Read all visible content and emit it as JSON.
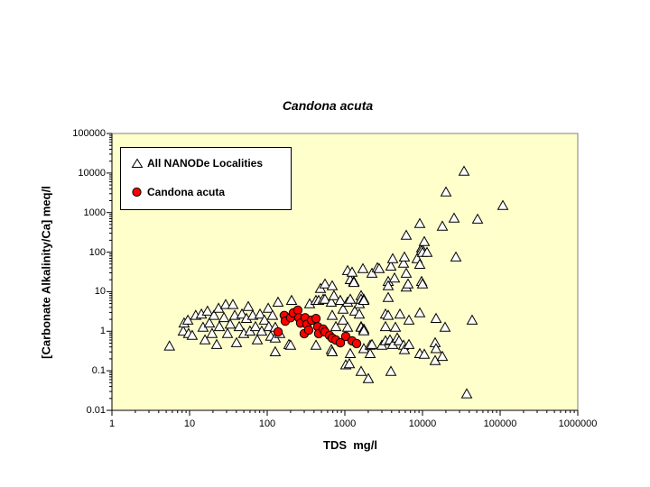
{
  "page": {
    "background": "#FFFFFF"
  },
  "chart_data": {
    "type": "scatter",
    "title": "Candona acuta",
    "xlabel": "TDS  mg/l",
    "ylabel": "[Carbonate Alkalinity/Ca] meq/l",
    "x_scale": "log",
    "y_scale": "log",
    "xlim": [
      1,
      1000000
    ],
    "ylim": [
      0.01,
      100000
    ],
    "x_ticks": [
      1,
      10,
      100,
      1000,
      10000,
      100000,
      1000000
    ],
    "y_ticks": [
      100000,
      10000,
      1000,
      100,
      10,
      1,
      0.1,
      0.01
    ],
    "grid": false,
    "plot_bg": "#FFFFCC",
    "frame_color": "#808080",
    "axis_color": "#000000",
    "legend": {
      "position": "top-left-inside",
      "border": "#000000",
      "bg": "#FFFFFF"
    },
    "series": [
      {
        "name": "All NANODe Localities",
        "marker": "triangle-open",
        "fill": "#FFFFFF",
        "outline": "#000000",
        "points": [
          [
            5.5,
            0.42
          ],
          [
            8.3,
            1.0
          ],
          [
            8.5,
            1.6
          ],
          [
            9.5,
            1.9
          ],
          [
            9.7,
            0.87
          ],
          [
            10.8,
            0.78
          ],
          [
            12,
            2.5
          ],
          [
            14.2,
            2.7
          ],
          [
            14.9,
            1.25
          ],
          [
            15.8,
            0.6
          ],
          [
            17,
            3.2
          ],
          [
            18,
            1.6
          ],
          [
            19.5,
            0.87
          ],
          [
            20.6,
            2.5
          ],
          [
            22.3,
            0.46
          ],
          [
            23.6,
            3.8
          ],
          [
            24.2,
            1.3
          ],
          [
            27.7,
            2.2
          ],
          [
            29.2,
            4.7
          ],
          [
            30.8,
            0.87
          ],
          [
            33.4,
            1.5
          ],
          [
            36.2,
            4.7
          ],
          [
            38.1,
            2.5
          ],
          [
            40.2,
            0.51
          ],
          [
            43.6,
            1.3
          ],
          [
            47.2,
            2.7
          ],
          [
            49.9,
            0.87
          ],
          [
            54,
            2.1
          ],
          [
            57,
            4.2
          ],
          [
            60,
            1.0
          ],
          [
            65,
            2.5
          ],
          [
            70.6,
            1.3
          ],
          [
            74.5,
            0.6
          ],
          [
            80.7,
            2.7
          ],
          [
            85,
            1.0
          ],
          [
            92,
            1.9
          ],
          [
            103,
            3.8
          ],
          [
            105,
            1.3
          ],
          [
            111,
            0.74
          ],
          [
            117,
            2.5
          ],
          [
            127,
            1.25
          ],
          [
            127,
            0.67
          ],
          [
            127,
            0.3
          ],
          [
            138,
            5.4
          ],
          [
            145,
            0.87
          ],
          [
            190,
            0.46
          ],
          [
            200,
            0.44
          ],
          [
            206,
            6.0
          ],
          [
            352,
            4.9
          ],
          [
            425,
            6.0
          ],
          [
            425,
            0.44
          ],
          [
            460,
            6.0
          ],
          [
            485,
            12
          ],
          [
            526,
            6.4
          ],
          [
            555,
            15.6
          ],
          [
            555,
            6.4
          ],
          [
            670,
            5.4
          ],
          [
            670,
            0.34
          ],
          [
            687,
            14
          ],
          [
            687,
            2.5
          ],
          [
            687,
            0.3
          ],
          [
            724,
            7.9
          ],
          [
            766,
            1.3
          ],
          [
            875,
            6.0
          ],
          [
            948,
            3.6
          ],
          [
            948,
            1.9
          ],
          [
            1028,
            0.14
          ],
          [
            1084,
            34
          ],
          [
            1084,
            5.4
          ],
          [
            1084,
            1.25
          ],
          [
            1143,
            0.15
          ],
          [
            1175,
            20
          ],
          [
            1175,
            6.4
          ],
          [
            1175,
            0.27
          ],
          [
            1239,
            31
          ],
          [
            1306,
            18
          ],
          [
            1306,
            17
          ],
          [
            1343,
            3.2
          ],
          [
            1535,
            4.9
          ],
          [
            1535,
            2.7
          ],
          [
            1620,
            7.9
          ],
          [
            1620,
            6.4
          ],
          [
            1620,
            1.3
          ],
          [
            1620,
            1.25
          ],
          [
            1620,
            0.096
          ],
          [
            1710,
            38
          ],
          [
            1755,
            6.4
          ],
          [
            1755,
            6.0
          ],
          [
            1755,
            1.13
          ],
          [
            1755,
            1.02
          ],
          [
            1755,
            0.36
          ],
          [
            2005,
            0.063
          ],
          [
            2118,
            0.44
          ],
          [
            2118,
            0.27
          ],
          [
            2234,
            29
          ],
          [
            2234,
            0.46
          ],
          [
            2624,
            40
          ],
          [
            2767,
            38
          ],
          [
            2998,
            0.44
          ],
          [
            3334,
            2.7
          ],
          [
            3334,
            1.3
          ],
          [
            3334,
            0.57
          ],
          [
            3614,
            18
          ],
          [
            3614,
            14
          ],
          [
            3614,
            7.1
          ],
          [
            3614,
            2.5
          ],
          [
            3814,
            0.6
          ],
          [
            3917,
            44
          ],
          [
            3917,
            0.096
          ],
          [
            4130,
            68
          ],
          [
            4130,
            0.46
          ],
          [
            4365,
            22
          ],
          [
            4477,
            1.25
          ],
          [
            4721,
            0.67
          ],
          [
            4989,
            0.57
          ],
          [
            5117,
            2.7
          ],
          [
            5702,
            52
          ],
          [
            5702,
            0.44
          ],
          [
            5848,
            75
          ],
          [
            5848,
            0.34
          ],
          [
            6180,
            265
          ],
          [
            6180,
            29
          ],
          [
            6180,
            13
          ],
          [
            6516,
            15.6
          ],
          [
            6699,
            1.9
          ],
          [
            6699,
            0.46
          ],
          [
            8511,
            68
          ],
          [
            9234,
            525
          ],
          [
            9234,
            49
          ],
          [
            9234,
            2.9
          ],
          [
            9234,
            0.27
          ],
          [
            9737,
            127
          ],
          [
            9737,
            109
          ],
          [
            9737,
            18
          ],
          [
            10000,
            98
          ],
          [
            10000,
            15.6
          ],
          [
            10550,
            184
          ],
          [
            10550,
            0.26
          ],
          [
            11430,
            98
          ],
          [
            14550,
            0.51
          ],
          [
            14550,
            0.18
          ],
          [
            14930,
            2.1
          ],
          [
            14930,
            0.36
          ],
          [
            18030,
            450
          ],
          [
            18030,
            0.23
          ],
          [
            19540,
            1.25
          ],
          [
            20050,
            3300
          ],
          [
            25530,
            720
          ],
          [
            26920,
            75
          ],
          [
            34270,
            11000
          ],
          [
            37150,
            0.026
          ],
          [
            43650,
            1.9
          ],
          [
            51170,
            680
          ],
          [
            108400,
            1500
          ]
        ]
      },
      {
        "name": "Candona acuta",
        "marker": "circle-filled",
        "fill": "#FF0000",
        "outline": "#000000",
        "points": [
          [
            138,
            0.96
          ],
          [
            166,
            2.5
          ],
          [
            171,
            1.8
          ],
          [
            200,
            2.2
          ],
          [
            217,
            2.9
          ],
          [
            248,
            3.4
          ],
          [
            255,
            2.2
          ],
          [
            269,
            1.6
          ],
          [
            300,
            0.87
          ],
          [
            308,
            2.2
          ],
          [
            325,
            1.5
          ],
          [
            343,
            1.07
          ],
          [
            372,
            1.9
          ],
          [
            425,
            2.1
          ],
          [
            448,
            1.3
          ],
          [
            460,
            0.87
          ],
          [
            526,
            1.13
          ],
          [
            555,
            0.96
          ],
          [
            634,
            0.78
          ],
          [
            687,
            0.67
          ],
          [
            766,
            0.6
          ],
          [
            875,
            0.51
          ],
          [
            1028,
            0.74
          ],
          [
            1239,
            0.57
          ],
          [
            1416,
            0.49
          ]
        ]
      }
    ]
  }
}
